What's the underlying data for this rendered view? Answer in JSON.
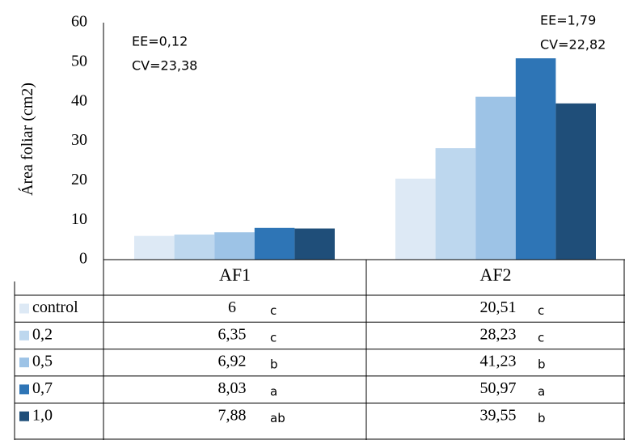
{
  "chart_data": {
    "type": "bar",
    "categories": [
      "AF1",
      "AF2"
    ],
    "ylabel": "Área foliar  (cm2)",
    "ylim": [
      0,
      60
    ],
    "yticks": [
      0,
      10,
      20,
      30,
      40,
      50,
      60
    ],
    "grid": false,
    "legend": "table-left",
    "series": [
      {
        "name": "control",
        "color": "#dde9f5",
        "values": [
          6,
          20.51
        ],
        "value_labels": [
          "6",
          "20,51"
        ],
        "letters": [
          "c",
          "c"
        ]
      },
      {
        "name": "0,2",
        "color": "#bdd7ee",
        "values": [
          6.35,
          28.23
        ],
        "value_labels": [
          "6,35",
          "28,23"
        ],
        "letters": [
          "c",
          "c"
        ]
      },
      {
        "name": "0,5",
        "color": "#9dc3e6",
        "values": [
          6.92,
          41.23
        ],
        "value_labels": [
          "6,92",
          "41,23"
        ],
        "letters": [
          "b",
          "b"
        ]
      },
      {
        "name": "0,7",
        "color": "#2e75b6",
        "values": [
          8.03,
          50.97
        ],
        "value_labels": [
          "8,03",
          "50,97"
        ],
        "letters": [
          "a",
          "a"
        ]
      },
      {
        "name": "1,0",
        "color": "#1f4e79",
        "values": [
          7.88,
          39.55
        ],
        "value_labels": [
          "7,88",
          "39,55"
        ],
        "letters": [
          "ab",
          "b"
        ]
      }
    ],
    "annotations": [
      {
        "group": "AF1",
        "lines": [
          "EE=0,12",
          "CV=23,38"
        ]
      },
      {
        "group": "AF2",
        "lines": [
          "EE=1,79",
          "CV=22,82"
        ]
      }
    ]
  }
}
